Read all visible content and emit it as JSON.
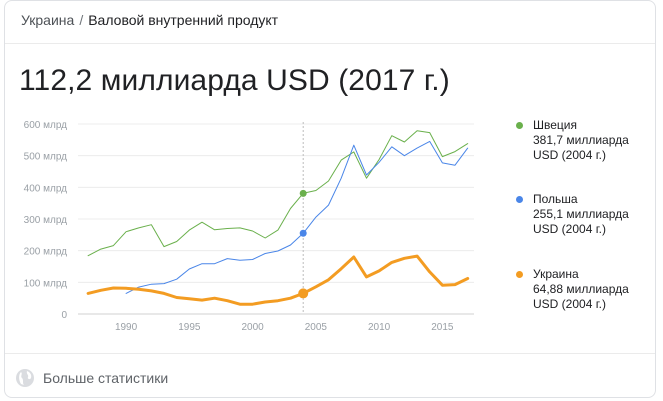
{
  "breadcrumb": {
    "country": "Украина",
    "separator": "/",
    "indicator": "Валовой внутренний продукт"
  },
  "headline": "112,2 миллиарда USD (2017 г.)",
  "more_link": "Больше статистики",
  "legend": [
    {
      "name": "Швеция",
      "value": "381,7 миллиарда USD (2004 г.)",
      "color": "#6ab04c"
    },
    {
      "name": "Польша",
      "value": "255,1 миллиарда USD (2004 г.)",
      "color": "#4a86e8"
    },
    {
      "name": "Украина",
      "value": "64,88 миллиарда USD (2004 г.)",
      "color": "#f39c22"
    }
  ],
  "chart_data": {
    "type": "line",
    "x_ticks": [
      "1990",
      "1995",
      "2000",
      "2005",
      "2010",
      "2015"
    ],
    "x_tick_values": [
      1990,
      1995,
      2000,
      2005,
      2010,
      2015
    ],
    "y_ticks": [
      "0",
      "100 млрд",
      "200 млрд",
      "300 млрд",
      "400 млрд",
      "500 млрд",
      "600 млрд"
    ],
    "y_tick_values": [
      0,
      100,
      200,
      300,
      400,
      500,
      600
    ],
    "xlim": [
      1986.2,
      2017.5
    ],
    "ylim": [
      0,
      600
    ],
    "highlight_year": 2004,
    "series": [
      {
        "name": "Швеция",
        "color": "#6ab04c",
        "x": [
          1987,
          1988,
          1989,
          1990,
          1991,
          1992,
          1993,
          1994,
          1995,
          1996,
          1997,
          1998,
          1999,
          2000,
          2001,
          2002,
          2003,
          2004,
          2005,
          2006,
          2007,
          2008,
          2009,
          2010,
          2011,
          2012,
          2013,
          2014,
          2015,
          2016,
          2017
        ],
        "values": [
          184,
          205,
          216,
          260,
          272,
          282,
          213,
          229,
          265,
          290,
          266,
          270,
          272,
          262,
          240,
          265,
          333,
          381,
          390,
          420,
          486,
          512,
          429,
          488,
          563,
          543,
          579,
          573,
          497,
          513,
          538
        ]
      },
      {
        "name": "Польша",
        "color": "#4a86e8",
        "x": [
          1990,
          1991,
          1992,
          1993,
          1994,
          1995,
          1996,
          1997,
          1998,
          1999,
          2000,
          2001,
          2002,
          2003,
          2004,
          2005,
          2006,
          2007,
          2008,
          2009,
          2010,
          2011,
          2012,
          2013,
          2014,
          2015,
          2016,
          2017
        ],
        "values": [
          65,
          85,
          94,
          96,
          110,
          142,
          159,
          159,
          175,
          170,
          172,
          191,
          199,
          218,
          255,
          306,
          344,
          429,
          533,
          439,
          479,
          528,
          500,
          524,
          545,
          477,
          470,
          524
        ]
      },
      {
        "name": "Украина",
        "color": "#f39c22",
        "x": [
          1987,
          1988,
          1989,
          1990,
          1991,
          1992,
          1993,
          1994,
          1995,
          1996,
          1997,
          1998,
          1999,
          2000,
          2001,
          2002,
          2003,
          2004,
          2005,
          2006,
          2007,
          2008,
          2009,
          2010,
          2011,
          2012,
          2013,
          2014,
          2015,
          2016,
          2017
        ],
        "values": [
          65,
          75,
          82,
          81,
          78,
          73,
          65,
          52,
          48,
          44,
          50,
          42,
          31,
          31,
          38,
          42,
          50,
          65,
          86,
          108,
          143,
          180,
          117,
          136,
          163,
          176,
          183,
          133,
          91,
          93,
          112
        ]
      }
    ]
  }
}
